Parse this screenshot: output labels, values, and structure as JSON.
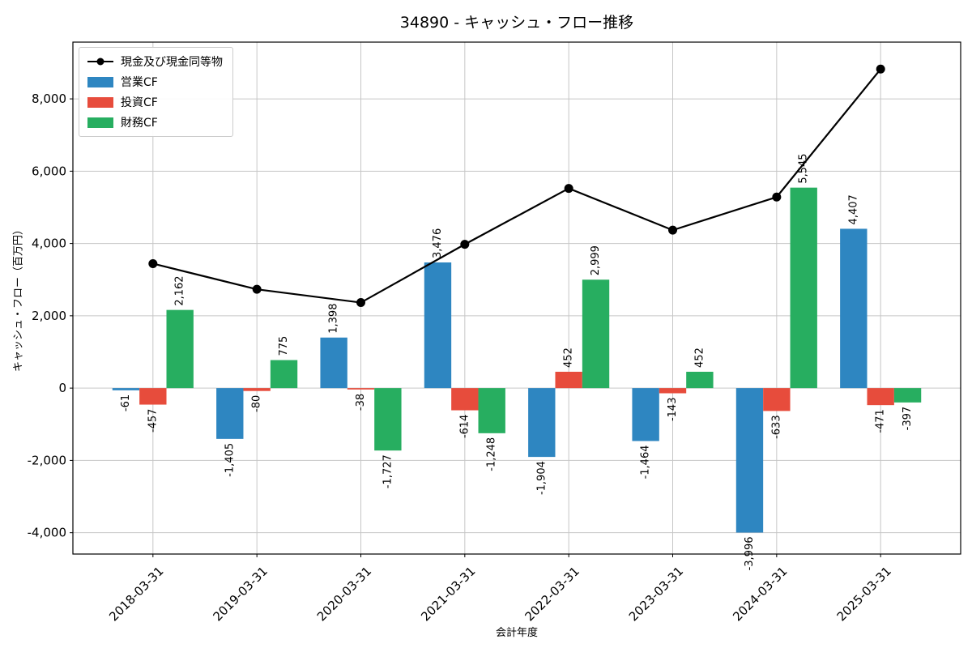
{
  "chart_data": {
    "type": "bar",
    "title": "34890 - キャッシュ・フロー推移",
    "xlabel": "会計年度",
    "ylabel": "キャッシュ・フロー（百万円）",
    "categories": [
      "2018-03-31",
      "2019-03-31",
      "2020-03-31",
      "2021-03-31",
      "2022-03-31",
      "2023-03-31",
      "2024-03-31",
      "2025-03-31"
    ],
    "bar_series": [
      {
        "name": "営業CF",
        "color": "#2e86c1",
        "values": [
          -61,
          -1405,
          1398,
          3476,
          -1904,
          -1464,
          -3996,
          4407
        ]
      },
      {
        "name": "投資CF",
        "color": "#e74c3c",
        "values": [
          -457,
          -80,
          -38,
          -614,
          452,
          -143,
          -633,
          -471
        ]
      },
      {
        "name": "財務CF",
        "color": "#27ae60",
        "values": [
          2162,
          775,
          -1727,
          -1248,
          2999,
          452,
          5545,
          -397
        ]
      }
    ],
    "line_series": {
      "name": "現金及び現金同等物",
      "color": "#000000",
      "values_estimated": [
        3443,
        2733,
        2366,
        3977,
        5524,
        4369,
        5285,
        8824
      ]
    },
    "yticks": [
      -4000,
      -2000,
      0,
      2000,
      4000,
      6000,
      8000
    ],
    "ylim": [
      -4590,
      9570
    ],
    "xlim_units": [
      -0.77,
      7.77
    ],
    "grid": true,
    "legend_position": "upper-left",
    "bar_label_rotation": 90,
    "xtick_rotation": 45
  }
}
